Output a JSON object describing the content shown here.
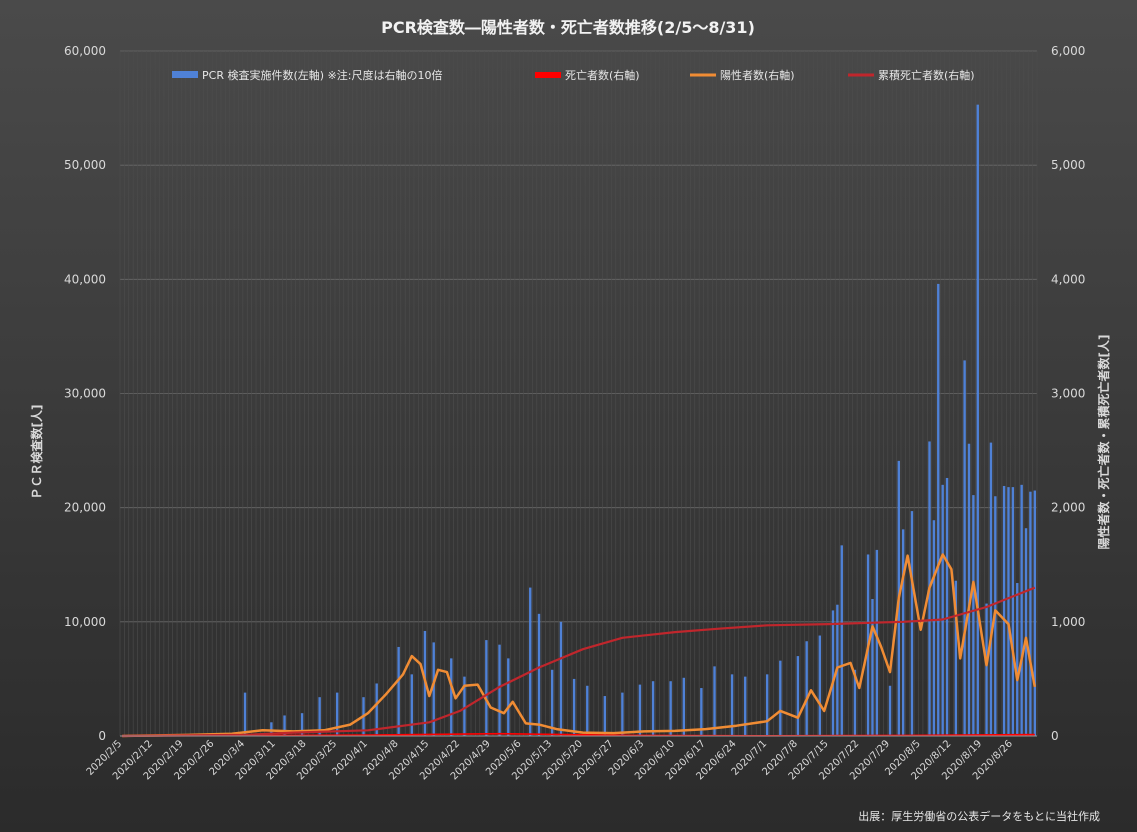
{
  "chart_data": {
    "type": "bar+line",
    "title": "PCR検査数―陽性者数・死亡者数推移(2/5～8/31)",
    "ylabel_left": "ＰＣＲ検査数[人]",
    "ylabel_right": "陽性者数・死亡者数・累積死亡者数[人]",
    "source_note": "出展：厚生労働省の公表データをもとに当社作成",
    "ylim_left": [
      0,
      60000
    ],
    "ylim_right": [
      0,
      6000
    ],
    "yticks_left": [
      "0",
      "10,000",
      "20,000",
      "30,000",
      "40,000",
      "50,000",
      "60,000"
    ],
    "yticks_right": [
      "0",
      "1,000",
      "2,000",
      "3,000",
      "4,000",
      "5,000",
      "6,000"
    ],
    "x_tick_labels": [
      "2020/2/5",
      "2020/2/12",
      "2020/2/19",
      "2020/2/26",
      "2020/3/4",
      "2020/3/11",
      "2020/3/18",
      "2020/3/25",
      "2020/4/1",
      "2020/4/8",
      "2020/4/15",
      "2020/4/22",
      "2020/4/29",
      "2020/5/6",
      "2020/5/13",
      "2020/5/20",
      "2020/5/27",
      "2020/6/3",
      "2020/6/10",
      "2020/6/17",
      "2020/6/24",
      "2020/7/1",
      "2020/7/8",
      "2020/7/15",
      "2020/7/22",
      "2020/7/29",
      "2020/8/5",
      "2020/8/12",
      "2020/8/19",
      "2020/8/26"
    ],
    "x_start": "2020/2/5",
    "x_end": "2020/8/31",
    "grid": true,
    "legend_position": "top",
    "series": [
      {
        "name": "PCR 検査実施件数(左軸) ※注:尺度は右軸の10倍",
        "kind": "bar",
        "axis": "left",
        "color": "#4f81d6",
        "points": [
          [
            "2020/3/4",
            3800
          ],
          [
            "2020/3/10",
            1200
          ],
          [
            "2020/3/13",
            1800
          ],
          [
            "2020/3/17",
            2000
          ],
          [
            "2020/3/21",
            3400
          ],
          [
            "2020/3/25",
            3800
          ],
          [
            "2020/3/31",
            3400
          ],
          [
            "2020/4/3",
            4600
          ],
          [
            "2020/4/8",
            7800
          ],
          [
            "2020/4/11",
            5400
          ],
          [
            "2020/4/14",
            9200
          ],
          [
            "2020/4/16",
            8200
          ],
          [
            "2020/4/20",
            6800
          ],
          [
            "2020/4/23",
            5200
          ],
          [
            "2020/4/28",
            8400
          ],
          [
            "2020/5/1",
            8000
          ],
          [
            "2020/5/3",
            6800
          ],
          [
            "2020/5/8",
            13000
          ],
          [
            "2020/5/10",
            10700
          ],
          [
            "2020/5/13",
            5800
          ],
          [
            "2020/5/15",
            10000
          ],
          [
            "2020/5/18",
            5000
          ],
          [
            "2020/5/21",
            4400
          ],
          [
            "2020/5/25",
            3500
          ],
          [
            "2020/5/29",
            3800
          ],
          [
            "2020/6/2",
            4500
          ],
          [
            "2020/6/5",
            4800
          ],
          [
            "2020/6/9",
            4800
          ],
          [
            "2020/6/12",
            5100
          ],
          [
            "2020/6/16",
            4200
          ],
          [
            "2020/6/19",
            6100
          ],
          [
            "2020/6/23",
            5400
          ],
          [
            "2020/6/26",
            5200
          ],
          [
            "2020/7/1",
            5400
          ],
          [
            "2020/7/4",
            6600
          ],
          [
            "2020/7/8",
            7000
          ],
          [
            "2020/7/10",
            8300
          ],
          [
            "2020/7/13",
            8800
          ],
          [
            "2020/7/16",
            11000
          ],
          [
            "2020/7/17",
            11500
          ],
          [
            "2020/7/18",
            16700
          ],
          [
            "2020/7/21",
            5800
          ],
          [
            "2020/7/24",
            15900
          ],
          [
            "2020/7/25",
            12000
          ],
          [
            "2020/7/26",
            16300
          ],
          [
            "2020/7/29",
            4400
          ],
          [
            "2020/7/31",
            24100
          ],
          [
            "2020/8/1",
            18100
          ],
          [
            "2020/8/3",
            19700
          ],
          [
            "2020/8/7",
            25800
          ],
          [
            "2020/8/8",
            18900
          ],
          [
            "2020/8/9",
            39600
          ],
          [
            "2020/8/10",
            22000
          ],
          [
            "2020/8/11",
            22600
          ],
          [
            "2020/8/13",
            13600
          ],
          [
            "2020/8/15",
            32900
          ],
          [
            "2020/8/16",
            25600
          ],
          [
            "2020/8/17",
            21100
          ],
          [
            "2020/8/18",
            55300
          ],
          [
            "2020/8/20",
            11600
          ],
          [
            "2020/8/21",
            25700
          ],
          [
            "2020/8/22",
            21000
          ],
          [
            "2020/8/24",
            21900
          ],
          [
            "2020/8/25",
            21800
          ],
          [
            "2020/8/26",
            21800
          ],
          [
            "2020/8/27",
            13400
          ],
          [
            "2020/8/28",
            22000
          ],
          [
            "2020/8/29",
            18200
          ],
          [
            "2020/8/30",
            21400
          ],
          [
            "2020/8/31",
            21500
          ]
        ]
      },
      {
        "name": "死亡者数(右軸)",
        "kind": "line",
        "axis": "right",
        "color": "#ff0000",
        "points": [
          [
            "2020/2/5",
            0
          ],
          [
            "2020/4/1",
            8
          ],
          [
            "2020/5/1",
            20
          ],
          [
            "2020/6/1",
            5
          ],
          [
            "2020/7/1",
            2
          ],
          [
            "2020/8/1",
            5
          ],
          [
            "2020/8/31",
            12
          ]
        ]
      },
      {
        "name": "陽性者数(右軸)",
        "kind": "line",
        "axis": "right",
        "color": "#f08c34",
        "points": [
          [
            "2020/2/5",
            0
          ],
          [
            "2020/2/20",
            10
          ],
          [
            "2020/3/1",
            20
          ],
          [
            "2020/3/8",
            50
          ],
          [
            "2020/3/15",
            40
          ],
          [
            "2020/3/22",
            50
          ],
          [
            "2020/3/28",
            100
          ],
          [
            "2020/4/1",
            200
          ],
          [
            "2020/4/5",
            360
          ],
          [
            "2020/4/9",
            540
          ],
          [
            "2020/4/11",
            700
          ],
          [
            "2020/4/13",
            630
          ],
          [
            "2020/4/15",
            350
          ],
          [
            "2020/4/17",
            580
          ],
          [
            "2020/4/19",
            560
          ],
          [
            "2020/4/21",
            330
          ],
          [
            "2020/4/23",
            440
          ],
          [
            "2020/4/26",
            450
          ],
          [
            "2020/4/29",
            250
          ],
          [
            "2020/5/2",
            200
          ],
          [
            "2020/5/4",
            300
          ],
          [
            "2020/5/7",
            110
          ],
          [
            "2020/5/10",
            100
          ],
          [
            "2020/5/14",
            60
          ],
          [
            "2020/5/20",
            30
          ],
          [
            "2020/5/27",
            25
          ],
          [
            "2020/6/3",
            40
          ],
          [
            "2020/6/10",
            45
          ],
          [
            "2020/6/17",
            60
          ],
          [
            "2020/6/24",
            90
          ],
          [
            "2020/7/1",
            130
          ],
          [
            "2020/7/4",
            220
          ],
          [
            "2020/7/8",
            160
          ],
          [
            "2020/7/11",
            400
          ],
          [
            "2020/7/14",
            220
          ],
          [
            "2020/7/17",
            600
          ],
          [
            "2020/7/20",
            640
          ],
          [
            "2020/7/22",
            420
          ],
          [
            "2020/7/25",
            960
          ],
          [
            "2020/7/27",
            780
          ],
          [
            "2020/7/29",
            560
          ],
          [
            "2020/7/31",
            1210
          ],
          [
            "2020/8/2",
            1580
          ],
          [
            "2020/8/5",
            930
          ],
          [
            "2020/8/7",
            1300
          ],
          [
            "2020/8/10",
            1590
          ],
          [
            "2020/8/12",
            1460
          ],
          [
            "2020/8/14",
            680
          ],
          [
            "2020/8/17",
            1350
          ],
          [
            "2020/8/20",
            620
          ],
          [
            "2020/8/22",
            1100
          ],
          [
            "2020/8/25",
            980
          ],
          [
            "2020/8/27",
            490
          ],
          [
            "2020/8/29",
            860
          ],
          [
            "2020/8/31",
            430
          ]
        ]
      },
      {
        "name": "累積死亡者数(右軸)",
        "kind": "line",
        "axis": "right",
        "color": "#c0262c",
        "points": [
          [
            "2020/2/5",
            0
          ],
          [
            "2020/3/4",
            10
          ],
          [
            "2020/3/15",
            30
          ],
          [
            "2020/4/1",
            50
          ],
          [
            "2020/4/15",
            120
          ],
          [
            "2020/4/22",
            220
          ],
          [
            "2020/5/1",
            430
          ],
          [
            "2020/5/10",
            600
          ],
          [
            "2020/5/20",
            760
          ],
          [
            "2020/5/29",
            860
          ],
          [
            "2020/6/10",
            910
          ],
          [
            "2020/6/20",
            940
          ],
          [
            "2020/7/1",
            970
          ],
          [
            "2020/7/15",
            980
          ],
          [
            "2020/8/1",
            1000
          ],
          [
            "2020/8/10",
            1020
          ],
          [
            "2020/8/20",
            1130
          ],
          [
            "2020/8/31",
            1300
          ]
        ]
      }
    ]
  }
}
